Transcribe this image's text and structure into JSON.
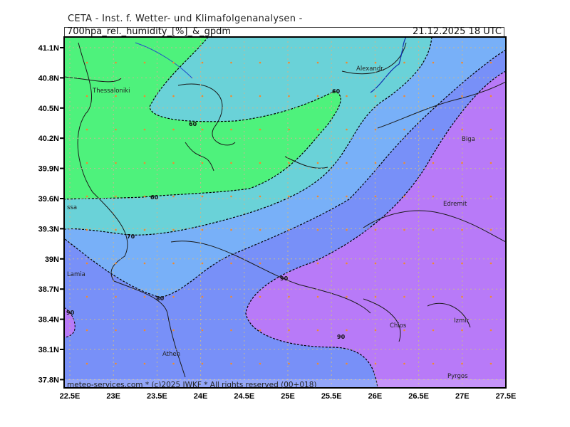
{
  "header": {
    "institute": "CETA - Inst. f. Wetter- und Klimafolgenanalysen -",
    "parameter": "700hpa_rel._humidity_[%]_&_gpdm",
    "valid_time": "21.12.2025 18 UTC"
  },
  "map": {
    "lat_labels": [
      "41.1N",
      "40.8N",
      "40.5N",
      "40.2N",
      "39.9N",
      "39.6N",
      "39.3N",
      "39N",
      "38.7N",
      "38.4N",
      "38.1N",
      "37.8N"
    ],
    "lon_labels": [
      "22.5E",
      "23E",
      "23.5E",
      "24E",
      "24.5E",
      "25E",
      "25.5E",
      "26E",
      "26.5E",
      "27E",
      "27.5E"
    ],
    "colors": {
      "lt60": "#4ef27c",
      "60_70": "#6ad2d8",
      "70_80": "#78b0f8",
      "80_90": "#7890f8",
      "gt90": "#b87af8",
      "grid": "#c8b890",
      "dots": "#f08a30"
    },
    "contour_labels": [
      "60",
      "60",
      "60",
      "70",
      "80",
      "90",
      "90",
      "90"
    ],
    "cities": [
      "Thessaloniki",
      "Alexandr.",
      "Biga",
      "Edremit",
      "ssa",
      "Lamia",
      "Athen",
      "Chios",
      "Izmir",
      "Pyrgos"
    ]
  },
  "footer": {
    "copyright": "meteo-services.com * (c)2025 IWKF * All rights reserved (00+018)"
  }
}
